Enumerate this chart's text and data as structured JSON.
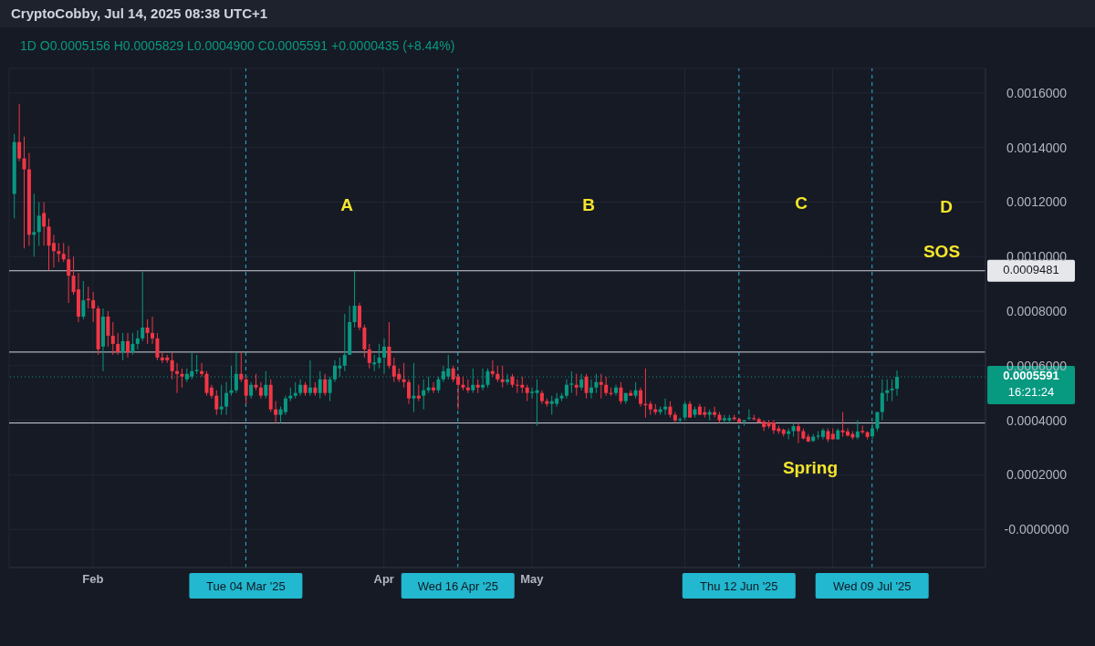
{
  "chart_data": {
    "type": "candlestick",
    "title": "CryptoCobby, Jul 14, 2025 08:38 UTC+1",
    "subtitle": "1D  O0.0005156  H0.0005829  L0.0004900  C0.0005591  +0.0000435 (+8.44%)",
    "x": [
      "2025-01-16",
      "2025-01-17",
      "2025-01-18",
      "2025-01-19",
      "2025-01-20",
      "2025-01-21",
      "2025-01-22",
      "2025-01-23",
      "2025-01-24",
      "2025-01-25",
      "2025-01-26",
      "2025-01-27",
      "2025-01-28",
      "2025-01-29",
      "2025-01-30",
      "2025-01-31",
      "2025-02-01",
      "2025-02-02",
      "2025-02-03",
      "2025-02-04",
      "2025-02-05",
      "2025-02-06",
      "2025-02-07",
      "2025-02-08",
      "2025-02-09",
      "2025-02-10",
      "2025-02-11",
      "2025-02-12",
      "2025-02-13",
      "2025-02-14",
      "2025-02-15",
      "2025-02-16",
      "2025-02-17",
      "2025-02-18",
      "2025-02-19",
      "2025-02-20",
      "2025-02-21",
      "2025-02-22",
      "2025-02-23",
      "2025-02-24",
      "2025-02-25",
      "2025-02-26",
      "2025-02-27",
      "2025-02-28",
      "2025-03-01",
      "2025-03-02",
      "2025-03-03",
      "2025-03-04",
      "2025-03-05",
      "2025-03-06",
      "2025-03-07",
      "2025-03-08",
      "2025-03-09",
      "2025-03-10",
      "2025-03-11",
      "2025-03-12",
      "2025-03-13",
      "2025-03-14",
      "2025-03-15",
      "2025-03-16",
      "2025-03-17",
      "2025-03-18",
      "2025-03-19",
      "2025-03-20",
      "2025-03-21",
      "2025-03-22",
      "2025-03-23",
      "2025-03-24",
      "2025-03-25",
      "2025-03-26",
      "2025-03-27",
      "2025-03-28",
      "2025-03-29",
      "2025-03-30",
      "2025-03-31",
      "2025-04-01",
      "2025-04-02",
      "2025-04-03",
      "2025-04-04",
      "2025-04-05",
      "2025-04-06",
      "2025-04-07",
      "2025-04-08",
      "2025-04-09",
      "2025-04-10",
      "2025-04-11",
      "2025-04-12",
      "2025-04-13",
      "2025-04-14",
      "2025-04-15",
      "2025-04-16",
      "2025-04-17",
      "2025-04-18",
      "2025-04-19",
      "2025-04-20",
      "2025-04-21",
      "2025-04-22",
      "2025-04-23",
      "2025-04-24",
      "2025-04-25",
      "2025-04-26",
      "2025-04-27",
      "2025-04-28",
      "2025-04-29",
      "2025-04-30",
      "2025-05-01",
      "2025-05-02",
      "2025-05-03",
      "2025-05-04",
      "2025-05-05",
      "2025-05-06",
      "2025-05-07",
      "2025-05-08",
      "2025-05-09",
      "2025-05-10",
      "2025-05-11",
      "2025-05-12",
      "2025-05-13",
      "2025-05-14",
      "2025-05-15",
      "2025-05-16",
      "2025-05-17",
      "2025-05-18",
      "2025-05-19",
      "2025-05-20",
      "2025-05-21",
      "2025-05-22",
      "2025-05-23",
      "2025-05-24",
      "2025-05-25",
      "2025-05-26",
      "2025-05-27",
      "2025-05-28",
      "2025-05-29",
      "2025-05-30",
      "2025-05-31",
      "2025-06-01",
      "2025-06-02",
      "2025-06-03",
      "2025-06-04",
      "2025-06-05",
      "2025-06-06",
      "2025-06-07",
      "2025-06-08",
      "2025-06-09",
      "2025-06-10",
      "2025-06-11",
      "2025-06-12",
      "2025-06-13",
      "2025-06-14",
      "2025-06-15",
      "2025-06-16",
      "2025-06-17",
      "2025-06-18",
      "2025-06-19",
      "2025-06-20",
      "2025-06-21",
      "2025-06-22",
      "2025-06-23",
      "2025-06-24",
      "2025-06-25",
      "2025-06-26",
      "2025-06-27",
      "2025-06-28",
      "2025-06-29",
      "2025-06-30",
      "2025-07-01",
      "2025-07-02",
      "2025-07-03",
      "2025-07-04",
      "2025-07-05",
      "2025-07-06",
      "2025-07-07",
      "2025-07-08",
      "2025-07-09",
      "2025-07-10",
      "2025-07-11",
      "2025-07-12",
      "2025-07-13",
      "2025-07-14"
    ],
    "ohlc": [
      [
        0.00123,
        0.00145,
        0.00114,
        0.00142
      ],
      [
        0.00142,
        0.00156,
        0.00135,
        0.00136
      ],
      [
        0.00136,
        0.00144,
        0.00103,
        0.00132
      ],
      [
        0.00132,
        0.00138,
        0.00104,
        0.00108
      ],
      [
        0.00108,
        0.00123,
        0.001,
        0.00109
      ],
      [
        0.00109,
        0.0012,
        0.00104,
        0.00115
      ],
      [
        0.00116,
        0.0012,
        0.00104,
        0.00111
      ],
      [
        0.00111,
        0.00114,
        0.00095,
        0.00104
      ],
      [
        0.00105,
        0.00108,
        0.00096,
        0.00102
      ],
      [
        0.00102,
        0.00105,
        0.00098,
        0.00101
      ],
      [
        0.00101,
        0.00105,
        0.00098,
        0.00099
      ],
      [
        0.00099,
        0.00104,
        0.00083,
        0.00093
      ],
      [
        0.00093,
        0.001,
        0.00086,
        0.00087
      ],
      [
        0.00088,
        0.00094,
        0.00076,
        0.00078
      ],
      [
        0.00078,
        0.00091,
        0.00077,
        0.00084
      ],
      [
        0.000845,
        0.00089,
        0.00081,
        0.00084
      ],
      [
        0.00084,
        0.00087,
        0.00076,
        0.00081
      ],
      [
        0.00081,
        0.00082,
        0.00064,
        0.00066
      ],
      [
        0.00067,
        0.00081,
        0.00058,
        0.00078
      ],
      [
        0.00078,
        0.0008,
        0.00067,
        0.00071
      ],
      [
        0.00071,
        0.00076,
        0.00064,
        0.00068
      ],
      [
        0.00068,
        0.00072,
        0.00064,
        0.00065
      ],
      [
        0.00065,
        0.00072,
        0.00062,
        0.00069
      ],
      [
        0.00069,
        0.00072,
        0.00063,
        0.00065
      ],
      [
        0.00065,
        0.00072,
        0.00064,
        0.00068
      ],
      [
        0.00068,
        0.00073,
        0.00066,
        0.0007
      ],
      [
        0.0007,
        0.000945,
        0.00069,
        0.00074
      ],
      [
        0.00074,
        0.00077,
        0.00068,
        0.00072
      ],
      [
        0.00072,
        0.00078,
        0.00068,
        0.0007
      ],
      [
        0.0007,
        0.00072,
        0.00062,
        0.00063
      ],
      [
        0.00063,
        0.00065,
        0.00061,
        0.00062
      ],
      [
        0.00063,
        0.00064,
        0.00061,
        0.00062
      ],
      [
        0.00062,
        0.00065,
        0.00055,
        0.00058
      ],
      [
        0.00058,
        0.00061,
        0.0005,
        0.00057
      ],
      [
        0.00057,
        0.00059,
        0.00052,
        0.00056
      ],
      [
        0.00055,
        0.00059,
        0.00054,
        0.00057
      ],
      [
        0.00056,
        0.00065,
        0.00055,
        0.00058
      ],
      [
        0.00058,
        0.00064,
        0.00057,
        0.000585
      ],
      [
        0.00058,
        0.00061,
        0.00056,
        0.00057
      ],
      [
        0.00057,
        0.00058,
        0.00049,
        0.0005
      ],
      [
        0.00052,
        0.00053,
        0.00048,
        0.00049
      ],
      [
        0.00049,
        0.00051,
        0.00042,
        0.00044
      ],
      [
        0.00044,
        0.00053,
        0.00042,
        0.00045
      ],
      [
        0.00045,
        0.00054,
        0.00042,
        0.0005
      ],
      [
        0.0005,
        0.0006,
        0.00049,
        0.00051
      ],
      [
        0.00051,
        0.00065,
        0.0005,
        0.00057
      ],
      [
        0.00057,
        0.00065,
        0.00054,
        0.00055
      ],
      [
        0.00055,
        0.00056,
        0.00046,
        0.00049
      ],
      [
        0.00049,
        0.00054,
        0.00048,
        0.00053
      ],
      [
        0.00053,
        0.00057,
        0.00051,
        0.00052
      ],
      [
        0.00052,
        0.00054,
        0.00048,
        0.00049
      ],
      [
        0.00049,
        0.00058,
        0.00048,
        0.00053
      ],
      [
        0.00053,
        0.00055,
        0.00043,
        0.00044
      ],
      [
        0.00044,
        0.00047,
        0.00039,
        0.00042
      ],
      [
        0.00042,
        0.00045,
        0.00039,
        0.00044
      ],
      [
        0.00043,
        0.00049,
        0.00042,
        0.00048
      ],
      [
        0.00048,
        0.00052,
        0.00047,
        0.00049
      ],
      [
        0.00049,
        0.00054,
        0.00048,
        0.0005
      ],
      [
        0.0005,
        0.00055,
        0.00049,
        0.00053
      ],
      [
        0.00053,
        0.00054,
        0.00049,
        0.0005
      ],
      [
        0.0005,
        0.00062,
        0.00049,
        0.00052
      ],
      [
        0.00052,
        0.00054,
        0.00049,
        0.0005
      ],
      [
        0.0005,
        0.00058,
        0.00048,
        0.00055
      ],
      [
        0.00055,
        0.00057,
        0.00049,
        0.0005
      ],
      [
        0.0005,
        0.00056,
        0.00047,
        0.00055
      ],
      [
        0.00055,
        0.00062,
        0.00054,
        0.0006
      ],
      [
        0.00059,
        0.00063,
        0.00056,
        0.0006
      ],
      [
        0.0006,
        0.00079,
        0.00058,
        0.00064
      ],
      [
        0.00064,
        0.00082,
        0.00064,
        0.00076
      ],
      [
        0.00076,
        0.000948,
        0.00074,
        0.00082
      ],
      [
        0.00082,
        0.00083,
        0.00073,
        0.00074
      ],
      [
        0.00074,
        0.00075,
        0.00063,
        0.00066
      ],
      [
        0.00066,
        0.00068,
        0.00059,
        0.00061
      ],
      [
        0.000605,
        0.00064,
        0.00058,
        0.000612
      ],
      [
        0.00061,
        0.00068,
        0.00059,
        0.00063
      ],
      [
        0.00063,
        0.0007,
        0.00057,
        0.00067
      ],
      [
        0.00067,
        0.00076,
        0.00059,
        0.0006
      ],
      [
        0.0006,
        0.00063,
        0.00054,
        0.00056
      ],
      [
        0.00057,
        0.00059,
        0.00054,
        0.00055
      ],
      [
        0.00055,
        0.00061,
        0.00052,
        0.00054
      ],
      [
        0.00054,
        0.00055,
        0.00046,
        0.00048
      ],
      [
        0.00048,
        0.00061,
        0.00043,
        0.00049
      ],
      [
        0.00049,
        0.00053,
        0.00047,
        0.00048
      ],
      [
        0.00049,
        0.00055,
        0.00044,
        0.00051
      ],
      [
        0.00051,
        0.00056,
        0.0005,
        0.00052
      ],
      [
        0.00052,
        0.00054,
        0.0005,
        0.00051
      ],
      [
        0.00051,
        0.00056,
        0.0005,
        0.00055
      ],
      [
        0.00055,
        0.0006,
        0.00054,
        0.00058
      ],
      [
        0.00056,
        0.00064,
        0.00055,
        0.00059
      ],
      [
        0.00059,
        0.0006,
        0.00054,
        0.00055
      ],
      [
        0.00056,
        0.00057,
        0.00044,
        0.00053
      ],
      [
        0.00053,
        0.00056,
        0.00051,
        0.00052
      ],
      [
        0.00052,
        0.00055,
        0.0005,
        0.00051
      ],
      [
        0.00051,
        0.00059,
        0.0005,
        0.00053
      ],
      [
        0.00053,
        0.00055,
        0.0005,
        0.00052
      ],
      [
        0.00052,
        0.00059,
        0.00051,
        0.00053
      ],
      [
        0.00053,
        0.00059,
        0.00052,
        0.00058
      ],
      [
        0.00058,
        0.00062,
        0.00056,
        0.00057
      ],
      [
        0.00057,
        0.0006,
        0.00054,
        0.00055
      ],
      [
        0.00055,
        0.0006,
        0.00052,
        0.00054
      ],
      [
        0.00054,
        0.00057,
        0.00053,
        0.00055
      ],
      [
        0.00056,
        0.00057,
        0.00052,
        0.00053
      ],
      [
        0.00053,
        0.00055,
        0.0005,
        0.000528
      ],
      [
        0.00053,
        0.00056,
        0.0005,
        0.00052
      ],
      [
        0.00052,
        0.00053,
        0.00047,
        0.0005
      ],
      [
        0.0005,
        0.00052,
        0.00048,
        0.000505
      ],
      [
        0.0005,
        0.00055,
        0.00038,
        0.00051
      ],
      [
        0.0005,
        0.00051,
        0.00046,
        0.00047
      ],
      [
        0.00047,
        0.00048,
        0.00045,
        0.00046
      ],
      [
        0.00046,
        0.00049,
        0.00042,
        0.00047
      ],
      [
        0.00046,
        0.0005,
        0.00045,
        0.00048
      ],
      [
        0.00048,
        0.0005,
        0.00047,
        0.00049
      ],
      [
        0.00049,
        0.00055,
        0.00048,
        0.00053
      ],
      [
        0.00053,
        0.00058,
        0.0005,
        0.000535
      ],
      [
        0.00053,
        0.00057,
        0.00049,
        0.00052
      ],
      [
        0.00052,
        0.00057,
        0.00051,
        0.00055
      ],
      [
        0.00056,
        0.00057,
        0.00048,
        0.0005
      ],
      [
        0.0005,
        0.00055,
        0.00048,
        0.00052
      ],
      [
        0.00052,
        0.00057,
        0.0005,
        0.00054
      ],
      [
        0.00054,
        0.00057,
        0.00048,
        0.00053
      ],
      [
        0.00053,
        0.00056,
        0.00049,
        0.0005
      ],
      [
        0.0005,
        0.00052,
        0.00049,
        0.000496
      ],
      [
        0.0005,
        0.00053,
        0.00049,
        0.00052
      ],
      [
        0.00052,
        0.00054,
        0.00046,
        0.00047
      ],
      [
        0.00047,
        0.0005,
        0.00046,
        0.0005
      ],
      [
        0.0005,
        0.00051,
        0.00049,
        0.00049
      ],
      [
        0.00049,
        0.00054,
        0.00048,
        0.00051
      ],
      [
        0.00051,
        0.00052,
        0.00045,
        0.00046
      ],
      [
        0.00046,
        0.00059,
        0.00041,
        0.000455
      ],
      [
        0.00046,
        0.00047,
        0.00042,
        0.00044
      ],
      [
        0.00044,
        0.00046,
        0.00042,
        0.00043
      ],
      [
        0.00043,
        0.00045,
        0.00042,
        0.00044
      ],
      [
        0.00044,
        0.00048,
        0.00042,
        0.00045
      ],
      [
        0.00045,
        0.00047,
        0.00041,
        0.00042
      ],
      [
        0.00042,
        0.00043,
        0.00039,
        0.0004
      ],
      [
        0.0004,
        0.00041,
        0.00039,
        0.000404
      ],
      [
        0.00041,
        0.00047,
        0.0004,
        0.00046
      ],
      [
        0.00046,
        0.00047,
        0.00041,
        0.00041
      ],
      [
        0.00042,
        0.00045,
        0.00041,
        0.00044
      ],
      [
        0.00045,
        0.00046,
        0.00042,
        0.00042
      ],
      [
        0.00043,
        0.00045,
        0.00041,
        0.00042
      ],
      [
        0.00042,
        0.00044,
        0.0004,
        0.00043
      ],
      [
        0.00043,
        0.00045,
        0.00041,
        0.00042
      ],
      [
        0.00042,
        0.00043,
        0.00039,
        0.0004
      ],
      [
        0.0004,
        0.00042,
        0.00039,
        0.000408
      ],
      [
        0.0004,
        0.00042,
        0.00039,
        0.000408
      ],
      [
        0.00041,
        0.00042,
        0.0004,
        0.000404
      ],
      [
        0.000404,
        0.00041,
        0.00039,
        0.000393
      ],
      [
        0.000395,
        0.0004,
        0.00038,
        0.0004
      ],
      [
        0.000406,
        0.00044,
        0.0004,
        0.00041
      ],
      [
        0.000408,
        0.00042,
        0.0004,
        0.000404
      ],
      [
        0.000404,
        0.00041,
        0.00039,
        0.000392
      ],
      [
        0.000395,
        0.0004,
        0.00036,
        0.000375
      ],
      [
        0.000392,
        0.0004,
        0.00037,
        0.000378
      ],
      [
        0.000392,
        0.0004,
        0.00035,
        0.000363
      ],
      [
        0.00037,
        0.00038,
        0.00035,
        0.00036
      ],
      [
        0.000365,
        0.00037,
        0.00034,
        0.00035
      ],
      [
        0.00035,
        0.00037,
        0.00033,
        0.00036
      ],
      [
        0.00036,
        0.00039,
        0.00034,
        0.000378
      ],
      [
        0.000378,
        0.00039,
        0.000316,
        0.00036
      ],
      [
        0.00036,
        0.00037,
        0.00033,
        0.000333
      ],
      [
        0.00034,
        0.00035,
        0.00032,
        0.000322
      ],
      [
        0.000324,
        0.00035,
        0.00032,
        0.00034
      ],
      [
        0.00034,
        0.00036,
        0.00033,
        0.000344
      ],
      [
        0.000339,
        0.00037,
        0.00033,
        0.000363
      ],
      [
        0.00036,
        0.00037,
        0.00032,
        0.00033
      ],
      [
        0.00035,
        0.00037,
        0.00033,
        0.00033
      ],
      [
        0.00033,
        0.00037,
        0.00033,
        0.000363
      ],
      [
        0.000363,
        0.00043,
        0.00034,
        0.000356
      ],
      [
        0.000359,
        0.00037,
        0.00034,
        0.000344
      ],
      [
        0.00035,
        0.00036,
        0.00033,
        0.000337
      ],
      [
        0.000337,
        0.0004,
        0.00033,
        0.000359
      ],
      [
        0.000361,
        0.00038,
        0.00035,
        0.000356
      ],
      [
        0.000356,
        0.00036,
        0.00033,
        0.000339
      ],
      [
        0.000341,
        0.00039,
        0.00033,
        0.00037
      ],
      [
        0.00037,
        0.00043,
        0.00036,
        0.00043
      ],
      [
        0.00043,
        0.00055,
        0.0004,
        0.0005
      ],
      [
        0.0005,
        0.00055,
        0.00047,
        0.00051
      ],
      [
        0.00051,
        0.00055,
        0.00047,
        0.000516
      ],
      [
        0.0005156,
        0.0005829,
        0.00049,
        0.0005591
      ]
    ],
    "colors": [
      "#089981",
      "#f23645",
      "#f23645",
      "#f23645",
      "#089981",
      "#089981",
      "#f23645",
      "#f23645",
      "#f23645",
      "#f23645",
      "#f23645",
      "#f23645",
      "#f23645",
      "#f23645",
      "#089981",
      "#f23645",
      "#f23645",
      "#f23645",
      "#089981",
      "#f23645",
      "#f23645",
      "#f23645",
      "#089981",
      "#f23645",
      "#089981",
      "#089981",
      "#089981",
      "#f23645",
      "#f23645",
      "#f23645",
      "#f23645",
      "#f23645",
      "#f23645",
      "#f23645",
      "#f23645",
      "#089981",
      "#089981",
      "#089981",
      "#f23645",
      "#f23645",
      "#f23645",
      "#f23645",
      "#089981",
      "#089981",
      "#089981",
      "#089981",
      "#f23645",
      "#f23645",
      "#089981",
      "#f23645",
      "#f23645",
      "#089981",
      "#f23645",
      "#f23645",
      "#089981",
      "#089981",
      "#089981",
      "#089981",
      "#089981",
      "#f23645",
      "#089981",
      "#f23645",
      "#089981",
      "#f23645",
      "#089981",
      "#089981",
      "#089981",
      "#089981",
      "#089981",
      "#089981",
      "#f23645",
      "#f23645",
      "#f23645",
      "#089981",
      "#089981",
      "#089981",
      "#f23645",
      "#f23645",
      "#f23645",
      "#f23645",
      "#f23645",
      "#089981",
      "#f23645",
      "#089981",
      "#089981",
      "#f23645",
      "#089981",
      "#089981",
      "#089981",
      "#f23645",
      "#f23645",
      "#f23645",
      "#f23645",
      "#089981",
      "#f23645",
      "#089981",
      "#089981",
      "#f23645",
      "#f23645",
      "#f23645",
      "#089981",
      "#f23645",
      "#f23645",
      "#f23645",
      "#f23645",
      "#089981",
      "#089981",
      "#f23645",
      "#f23645",
      "#089981",
      "#089981",
      "#089981",
      "#089981",
      "#089981",
      "#f23645",
      "#089981",
      "#f23645",
      "#089981",
      "#089981",
      "#f23645",
      "#f23645",
      "#f23645",
      "#089981",
      "#f23645",
      "#089981",
      "#f23645",
      "#089981",
      "#f23645",
      "#f23645",
      "#f23645",
      "#f23645",
      "#089981",
      "#089981",
      "#f23645",
      "#f23645",
      "#089981",
      "#089981",
      "#f23645",
      "#089981",
      "#f23645",
      "#f23645",
      "#089981",
      "#f23645",
      "#f23645",
      "#089981",
      "#089981",
      "#f23645",
      "#f23645",
      "#089981",
      "#089981",
      "#f23645",
      "#f23645",
      "#f23645",
      "#f23645",
      "#f23645",
      "#f23645",
      "#f23645",
      "#089981",
      "#089981",
      "#f23645",
      "#f23645",
      "#f23645",
      "#089981",
      "#089981",
      "#089981",
      "#f23645",
      "#f23645",
      "#089981",
      "#f23645",
      "#f23645",
      "#f23645",
      "#089981",
      "#f23645",
      "#f23645",
      "#089981",
      "#089981",
      "#089981",
      "#089981",
      "#089981",
      "#089981"
    ],
    "xlim": [
      "2025-01-15",
      "2025-08-01"
    ],
    "xticks": [
      {
        "value": "2025-02-01",
        "label": "Feb"
      },
      {
        "value": "2025-03-01",
        "label": null
      },
      {
        "value": "2025-04-01",
        "label": "Apr"
      },
      {
        "value": "2025-05-01",
        "label": "May"
      },
      {
        "value": "2025-06-01",
        "label": null
      },
      {
        "value": "2025-07-01",
        "label": null
      }
    ],
    "ylim": [
      -0.00014,
      0.00169
    ],
    "yticks": [
      {
        "value": 0,
        "label": "-0.0000000"
      },
      {
        "value": 0.0002,
        "label": "0.0002000"
      },
      {
        "value": 0.0004,
        "label": "0.0004000"
      },
      {
        "value": 0.0006,
        "label": "0.0006000"
      },
      {
        "value": 0.0008,
        "label": "0.0008000"
      },
      {
        "value": 0.001,
        "label": "0.0010000"
      },
      {
        "value": 0.0012,
        "label": "0.0012000"
      },
      {
        "value": 0.0014,
        "label": "0.0014000"
      },
      {
        "value": 0.0016,
        "label": "0.0016000"
      }
    ],
    "grid": true,
    "ref_lines": [
      {
        "axis": "y",
        "value": 0.0009481,
        "label": "0.0009481",
        "color": "#d1d4dc",
        "line_style": "solid"
      },
      {
        "axis": "y",
        "value": 0.00065,
        "label": null,
        "color": "#d1d4dc",
        "line_style": "solid"
      },
      {
        "axis": "y",
        "value": 0.00039,
        "label": null,
        "color": "#d1d4dc",
        "line_style": "solid"
      },
      {
        "axis": "y",
        "value": 0.0005591,
        "label": "0.0005591 16:21:24",
        "color": "#089981",
        "line_style": "dotted"
      },
      {
        "axis": "x",
        "value": "2025-03-04",
        "label": "Tue 04 Mar '25",
        "color": "#22b8cf",
        "line_style": "dashed"
      },
      {
        "axis": "x",
        "value": "2025-04-16",
        "label": "Wed 16 Apr '25",
        "color": "#22b8cf",
        "line_style": "dashed"
      },
      {
        "axis": "x",
        "value": "2025-06-12",
        "label": "Thu 12 Jun '25",
        "color": "#22b8cf",
        "line_style": "dashed"
      },
      {
        "axis": "x",
        "value": "2025-07-09",
        "label": "Wed 09 Jul '25",
        "color": "#22b8cf",
        "line_style": "dashed"
      }
    ],
    "annotations": [
      "A",
      "B",
      "C",
      "D",
      "SOS",
      "Spring"
    ]
  }
}
